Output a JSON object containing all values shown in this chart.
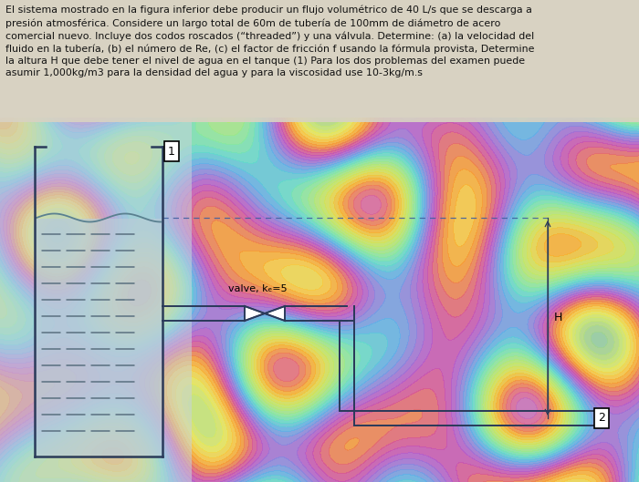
{
  "title_text": "El sistema mostrado en la figura inferior debe producir un flujo volumétrico de 40 L/s que se descarga a\npresión atmosférica. Considere un largo total de 60m de tubería de 100mm de diámetro de acero\ncomercial nuevo. Incluye dos codos roscados (“threaded”) y una válvula. Determine: (a) la velocidad del\nfluido en la tubería, (b) el número de Re, (c) el factor de fricción f usando la fórmula provista, Determine\nla altura H que debe tener el nivel de agua en el tanque (1) Para los dos problemas del examen puede\nasumir 1,000kg/m3 para la densidad del agua y para la viscosidad use 10-3kg/m.s",
  "bg_color": "#ddd8cc",
  "line_color": "#2a3a5a",
  "text_color": "#111111",
  "label_1": "1",
  "label_2": "2",
  "label_valve": "valve, kₑ=5",
  "label_H": "H",
  "fig_bg": "#cec8bc"
}
